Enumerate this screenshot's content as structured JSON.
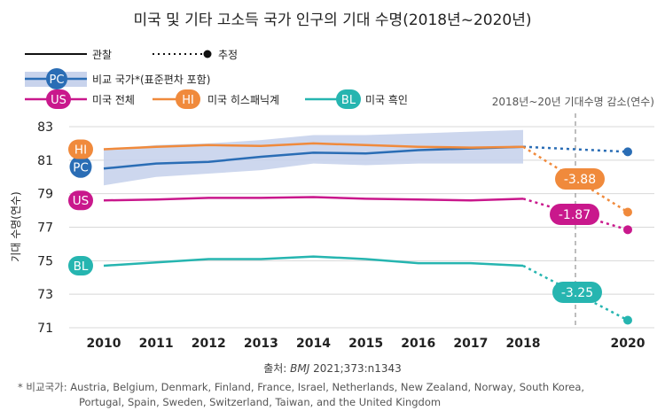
{
  "chart_data": {
    "type": "line",
    "title": "미국 및 기타 고소득 국가 인구의 기대 수명(2018년~2020년)",
    "ylabel": "기대 수명(연수)",
    "xlabel": "",
    "ylim": [
      71,
      83
    ],
    "yticks": [
      "71",
      "73",
      "75",
      "77",
      "79",
      "81",
      "83"
    ],
    "xticks": [
      "2010",
      "2011",
      "2012",
      "2013",
      "2014",
      "2015",
      "2016",
      "2017",
      "2018",
      "2020"
    ],
    "grid": true,
    "legend": {
      "observed": "관찰",
      "estimated": "추정",
      "pc_label": "비교 국가*(표준편차 포함)",
      "us_label": "미국 전체",
      "hi_label": "미국 히스패닉계",
      "bl_label": "미국 흑인"
    },
    "drop_annotation": "2018년~20년 기대수명 감소(연수)",
    "series": [
      {
        "name": "PC",
        "color": "#2a6db5",
        "x": [
          2010,
          2011,
          2012,
          2013,
          2014,
          2015,
          2016,
          2017,
          2018
        ],
        "values": [
          80.5,
          80.8,
          80.9,
          81.2,
          81.45,
          81.4,
          81.6,
          81.7,
          81.8
        ],
        "band_low": [
          79.5,
          80.0,
          80.2,
          80.4,
          80.8,
          80.7,
          80.8,
          80.8,
          80.8
        ],
        "band_high": [
          81.6,
          81.9,
          82.0,
          82.2,
          82.5,
          82.5,
          82.6,
          82.7,
          82.8
        ],
        "estimate_2020": 81.5,
        "drop": null
      },
      {
        "name": "HI",
        "color": "#f08a3c",
        "x": [
          2010,
          2011,
          2012,
          2013,
          2014,
          2015,
          2016,
          2017,
          2018
        ],
        "values": [
          81.65,
          81.8,
          81.9,
          81.85,
          82.0,
          81.9,
          81.8,
          81.75,
          81.8
        ],
        "estimate_2020": 77.9,
        "drop": "-3.88"
      },
      {
        "name": "US",
        "color": "#c9188c",
        "x": [
          2010,
          2011,
          2012,
          2013,
          2014,
          2015,
          2016,
          2017,
          2018
        ],
        "values": [
          78.6,
          78.65,
          78.75,
          78.75,
          78.8,
          78.7,
          78.65,
          78.6,
          78.7
        ],
        "estimate_2020": 76.85,
        "drop": "-1.87"
      },
      {
        "name": "BL",
        "color": "#26b5b0",
        "x": [
          2010,
          2011,
          2012,
          2013,
          2014,
          2015,
          2016,
          2017,
          2018
        ],
        "values": [
          74.7,
          74.9,
          75.1,
          75.1,
          75.25,
          75.1,
          74.85,
          74.85,
          74.7
        ],
        "estimate_2020": 71.45,
        "drop": "-3.25"
      }
    ]
  },
  "source_prefix": "출처: ",
  "source_journal": "BMJ",
  "source_ref": " 2021;373:n1343",
  "footnote_1": "* 비교국가: Austria, Belgium, Denmark, Finland, France, Israel, Netherlands, New Zealand, Norway, South Korea,",
  "footnote_2": "Portugal, Spain, Sweden, Switzerland, Taiwan, and the United Kingdom",
  "colors": {
    "grid": "#d8d8d8",
    "band": "#c8d3ec",
    "dashed_divider": "#9a9a9a"
  }
}
